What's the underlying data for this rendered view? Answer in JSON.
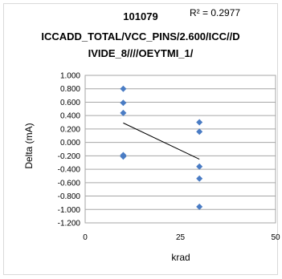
{
  "chart_data": {
    "type": "scatter",
    "title_lines": [
      "101079",
      "ICCADD_TOTAL/VCC_PINS/2.600/ICC//D",
      "IVIDE_8////OEYTMI_1/"
    ],
    "r_squared_label": "R² = 0.2977",
    "xlabel": "krad",
    "ylabel": "Delta (mA)",
    "xlim": [
      0,
      50
    ],
    "ylim": [
      -1.2,
      1.0
    ],
    "x_ticks": [
      "0",
      "25",
      "50"
    ],
    "y_ticks": [
      "1.000",
      "0.800",
      "0.600",
      "0.400",
      "0.200",
      "0.000",
      "-0.200",
      "-0.400",
      "-0.600",
      "-0.800",
      "-1.000",
      "-1.200"
    ],
    "grid": true,
    "marker_color": "#4a7cc4",
    "trendline_color": "#000000",
    "series": [
      {
        "x": [
          10,
          10,
          10,
          10,
          10,
          30,
          30,
          30,
          30,
          30
        ],
        "y": [
          0.8,
          0.59,
          0.44,
          -0.19,
          -0.21,
          0.3,
          0.16,
          -0.36,
          -0.54,
          -0.96
        ]
      }
    ],
    "trendline": {
      "x": [
        10,
        30
      ],
      "y": [
        0.29,
        -0.25
      ]
    }
  }
}
